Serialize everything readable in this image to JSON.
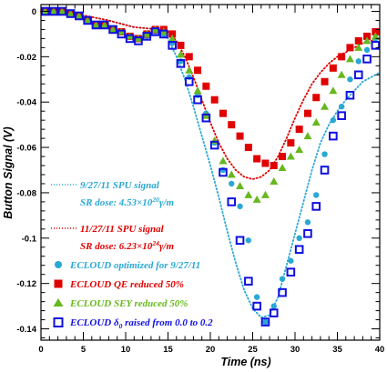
{
  "chart_data": {
    "type": "scatter",
    "xlabel": "Time (ns)",
    "ylabel": "Button Signal (V)",
    "xlim": [
      0,
      40
    ],
    "ylim": [
      -0.145,
      0.003
    ],
    "x_ticks": [
      0,
      5,
      10,
      15,
      20,
      25,
      30,
      35,
      40
    ],
    "x_tick_labels": [
      "0",
      "5",
      "10",
      "15",
      "20",
      "25",
      "30",
      "35",
      "40"
    ],
    "y_ticks": [
      0,
      -0.02,
      -0.04,
      -0.06,
      -0.08,
      -0.1,
      -0.12,
      -0.14
    ],
    "y_tick_labels": [
      "0",
      "-0.02",
      "-0.04",
      "-0.06",
      "-0.08",
      "-0.1",
      "-0.12",
      "-0.14"
    ],
    "grid": false,
    "legend_position": "bottom-left",
    "annotations": {
      "spu_0927_title": "9/27/11 SPU signal",
      "spu_0927_dose_prefix": "SR dose: 4.53×10",
      "spu_0927_dose_exp": "20",
      "spu_0927_dose_suffix": "γ/m",
      "spu_1127_title": "11/27/11 SPU signal",
      "spu_1127_dose_prefix": "SR dose: 6.23×10",
      "spu_1127_dose_exp": "24",
      "spu_1127_dose_suffix": "γ/m"
    },
    "legend": {
      "cyan_label": "ECLOUD optimized for 9/27/11",
      "red_label": "ECLOUD QE reduced 50%",
      "green_label": "ECLOUD SEY reduced 50%",
      "blue_prefix": "ECLOUD δ",
      "blue_sub": "0",
      "blue_suffix": " raised from 0.0 to 0.2"
    },
    "colors": {
      "cyan": "#2aa8d4",
      "red": "#e00000",
      "green": "#66b81e",
      "blue": "#1010e0"
    },
    "series": [
      {
        "name": "9/27/11 SPU signal",
        "style": "dotted-line",
        "color_key": "cyan",
        "x": [
          0,
          4,
          8,
          11,
          14,
          15,
          16,
          17,
          18,
          19,
          20,
          21,
          22,
          23,
          24,
          25,
          26,
          27,
          28,
          29,
          30,
          31,
          32,
          33,
          34,
          35,
          36,
          37,
          38,
          39,
          40
        ],
        "y": [
          0,
          -0.001,
          -0.004,
          -0.007,
          -0.008,
          -0.012,
          -0.02,
          -0.03,
          -0.042,
          -0.055,
          -0.068,
          -0.082,
          -0.097,
          -0.111,
          -0.123,
          -0.131,
          -0.135,
          -0.134,
          -0.126,
          -0.112,
          -0.098,
          -0.084,
          -0.07,
          -0.058,
          -0.05,
          -0.044,
          -0.039,
          -0.035,
          -0.031,
          -0.029,
          -0.027
        ]
      },
      {
        "name": "11/27/11 SPU signal",
        "style": "dotted-line",
        "color_key": "red",
        "x": [
          0,
          4,
          8,
          11,
          14,
          15,
          16,
          17,
          18,
          19,
          20,
          21,
          22,
          23,
          24,
          25,
          26,
          27,
          28,
          29,
          30,
          31,
          32,
          33,
          34,
          35,
          36,
          37,
          38,
          39,
          40
        ],
        "y": [
          0,
          -0.001,
          -0.004,
          -0.007,
          -0.008,
          -0.009,
          -0.013,
          -0.02,
          -0.029,
          -0.039,
          -0.049,
          -0.058,
          -0.065,
          -0.07,
          -0.073,
          -0.074,
          -0.073,
          -0.07,
          -0.064,
          -0.056,
          -0.047,
          -0.039,
          -0.032,
          -0.027,
          -0.023,
          -0.02,
          -0.018,
          -0.016,
          -0.014,
          -0.013,
          -0.012
        ]
      },
      {
        "name": "ECLOUD optimized for 9/27/11",
        "style": "circle",
        "color_key": "cyan",
        "x": [
          0.5,
          1.5,
          2.5,
          3.5,
          4.5,
          5.5,
          6.5,
          7.5,
          8.5,
          9.5,
          10.5,
          11.5,
          12.5,
          13.5,
          14.5,
          15.5,
          16.5,
          17.5,
          18.5,
          19.5,
          20.5,
          21.5,
          22.5,
          23.5,
          24.5,
          25.5,
          26.5,
          27.5,
          28.5,
          29.5,
          30.5,
          31.5,
          32.5,
          33.5,
          34.5,
          35.5,
          36.5,
          37.5,
          38.5,
          39.5
        ],
        "y": [
          0,
          0,
          0,
          -0.001,
          -0.002,
          -0.004,
          -0.006,
          -0.006,
          -0.008,
          -0.009,
          -0.011,
          -0.012,
          -0.011,
          -0.009,
          -0.01,
          -0.014,
          -0.022,
          -0.029,
          -0.037,
          -0.045,
          -0.058,
          -0.07,
          -0.076,
          -0.086,
          -0.101,
          -0.126,
          -0.137,
          -0.13,
          -0.118,
          -0.11,
          -0.1,
          -0.093,
          -0.081,
          -0.063,
          -0.048,
          -0.042,
          -0.03,
          -0.022,
          -0.017,
          -0.012
        ]
      },
      {
        "name": "ECLOUD QE reduced 50%",
        "style": "square-filled",
        "color_key": "red",
        "x": [
          0.5,
          1.5,
          2.5,
          3.5,
          4.5,
          5.5,
          6.5,
          7.5,
          8.5,
          9.5,
          10.5,
          11.5,
          12.5,
          13.5,
          14.5,
          15.5,
          16.5,
          17.5,
          18.5,
          19.5,
          20.5,
          21.5,
          22.5,
          23.5,
          24.5,
          25.5,
          26.5,
          27.5,
          28.5,
          29.5,
          30.5,
          31.5,
          32.5,
          33.5,
          34.5,
          35.5,
          36.5,
          37.5,
          38.5,
          39.5
        ],
        "y": [
          0,
          0,
          0,
          -0.001,
          -0.002,
          -0.004,
          -0.006,
          -0.006,
          -0.008,
          -0.009,
          -0.011,
          -0.012,
          -0.01,
          -0.008,
          -0.008,
          -0.01,
          -0.015,
          -0.02,
          -0.026,
          -0.033,
          -0.039,
          -0.045,
          -0.05,
          -0.055,
          -0.06,
          -0.065,
          -0.067,
          -0.068,
          -0.064,
          -0.058,
          -0.052,
          -0.045,
          -0.038,
          -0.031,
          -0.025,
          -0.02,
          -0.016,
          -0.013,
          -0.011,
          -0.009
        ]
      },
      {
        "name": "ECLOUD SEY reduced 50%",
        "style": "triangle",
        "color_key": "green",
        "x": [
          0.5,
          1.5,
          2.5,
          3.5,
          4.5,
          5.5,
          6.5,
          7.5,
          8.5,
          9.5,
          10.5,
          11.5,
          12.5,
          13.5,
          14.5,
          15.5,
          16.5,
          17.5,
          18.5,
          19.5,
          20.5,
          21.5,
          22.5,
          23.5,
          24.5,
          25.5,
          26.5,
          27.5,
          28.5,
          29.5,
          30.5,
          31.5,
          32.5,
          33.5,
          34.5,
          35.5,
          36.5,
          37.5,
          38.5,
          39.5
        ],
        "y": [
          0,
          0,
          0,
          -0.001,
          -0.002,
          -0.004,
          -0.006,
          -0.006,
          -0.008,
          -0.009,
          -0.011,
          -0.012,
          -0.01,
          -0.008,
          -0.009,
          -0.012,
          -0.019,
          -0.026,
          -0.035,
          -0.046,
          -0.057,
          -0.066,
          -0.072,
          -0.077,
          -0.081,
          -0.083,
          -0.081,
          -0.075,
          -0.069,
          -0.064,
          -0.061,
          -0.055,
          -0.049,
          -0.042,
          -0.035,
          -0.028,
          -0.021,
          -0.016,
          -0.013,
          -0.011
        ]
      },
      {
        "name": "ECLOUD δ0 raised from 0.0 to 0.2",
        "style": "square-open",
        "color_key": "blue",
        "x": [
          0.5,
          1.5,
          2.5,
          3.5,
          4.5,
          5.5,
          6.5,
          7.5,
          8.5,
          9.5,
          10.5,
          11.5,
          12.5,
          13.5,
          14.5,
          15.5,
          16.5,
          17.5,
          18.5,
          19.5,
          20.5,
          21.5,
          22.5,
          23.5,
          24.5,
          25.5,
          26.5,
          27.5,
          28.5,
          29.5,
          30.5,
          31.5,
          32.5,
          33.5,
          34.5,
          35.5,
          36.5,
          37.5,
          38.5,
          39.5
        ],
        "y": [
          0,
          0,
          0,
          -0.001,
          -0.002,
          -0.004,
          -0.006,
          -0.006,
          -0.008,
          -0.01,
          -0.012,
          -0.013,
          -0.011,
          -0.009,
          -0.01,
          -0.015,
          -0.023,
          -0.031,
          -0.039,
          -0.047,
          -0.059,
          -0.071,
          -0.084,
          -0.101,
          -0.119,
          -0.13,
          -0.137,
          -0.133,
          -0.124,
          -0.115,
          -0.105,
          -0.098,
          -0.086,
          -0.07,
          -0.055,
          -0.046,
          -0.037,
          -0.028,
          -0.021,
          -0.015
        ]
      }
    ]
  }
}
